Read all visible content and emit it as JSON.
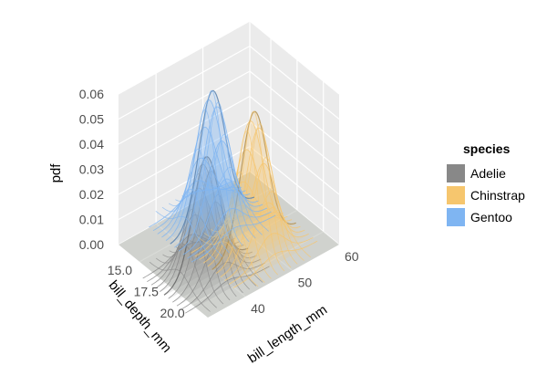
{
  "chart_data": {
    "type": "surface3d",
    "title": "",
    "xlabel": "bill_length_mm",
    "ylabel": "bill_depth_mm",
    "zlabel": "pdf",
    "xticks": [
      "40",
      "50",
      "60"
    ],
    "yticks": [
      "15.0",
      "17.5",
      "20.0"
    ],
    "zticks": [
      "0.00",
      "0.01",
      "0.02",
      "0.03",
      "0.04",
      "0.05",
      "0.06"
    ],
    "xlim": [
      32,
      60
    ],
    "ylim": [
      13,
      21.5
    ],
    "zlim": [
      0,
      0.06
    ],
    "grid": true,
    "legend": {
      "title": "species",
      "position": "right"
    },
    "series": [
      {
        "name": "Adelie",
        "color": "#888888",
        "peak_x": 38.8,
        "peak_y": 18.3,
        "peak_pdf": 0.046
      },
      {
        "name": "Chinstrap",
        "color": "#F6C66E",
        "peak_x": 48.8,
        "peak_y": 18.4,
        "peak_pdf": 0.054
      },
      {
        "name": "Gentoo",
        "color": "#7FB5F2",
        "peak_x": 47.5,
        "peak_y": 15.0,
        "peak_pdf": 0.052
      }
    ]
  }
}
